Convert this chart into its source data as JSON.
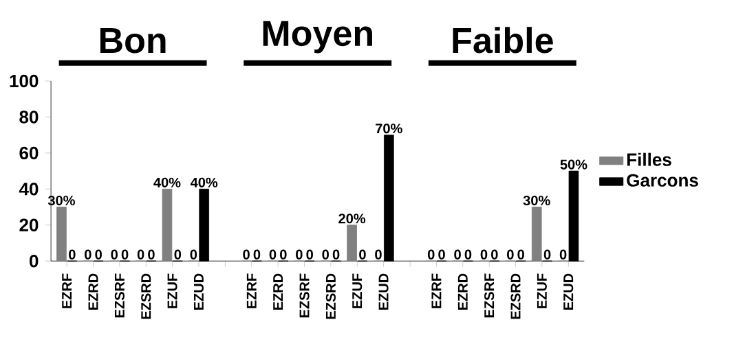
{
  "chart_data": {
    "type": "bar",
    "annotations": [
      "Bon",
      "Moyen",
      "Faible"
    ],
    "categories": [
      "EZRF",
      "EZRD",
      "EZSRF",
      "EZSRD",
      "EZUF",
      "EZUD",
      null,
      "EZRF",
      "EZRD",
      "EZSRF",
      "EZSRD",
      "EZUF",
      "EZUD",
      null,
      "EZRF",
      "EZRD",
      "EZSRF",
      "EZSRD",
      "EZUF",
      "EZUD"
    ],
    "series": [
      {
        "name": "Filles",
        "color": "#808080",
        "values": [
          30,
          0,
          0,
          0,
          40,
          0,
          null,
          0,
          0,
          0,
          0,
          20,
          0,
          null,
          0,
          0,
          0,
          0,
          30,
          0
        ],
        "value_labels": [
          "30%",
          "0",
          "0",
          "0",
          "40%",
          "0",
          null,
          "0",
          "0",
          "0",
          "0",
          "20%",
          "0",
          null,
          "0",
          "0",
          "0",
          "0",
          "30%",
          "0"
        ]
      },
      {
        "name": "Garcons",
        "color": "#000000",
        "values": [
          0,
          0,
          0,
          0,
          0,
          40,
          null,
          0,
          0,
          0,
          0,
          0,
          70,
          null,
          0,
          0,
          0,
          0,
          0,
          50
        ],
        "value_labels": [
          "0",
          "0",
          "0",
          "0",
          "0",
          "40%",
          null,
          "0",
          "0",
          "0",
          "0",
          "0",
          "70%",
          null,
          "0",
          "0",
          "0",
          "0",
          "0",
          "50%"
        ]
      }
    ],
    "ylim": [
      0,
      100
    ],
    "yticks": [
      0,
      20,
      40,
      60,
      80,
      100
    ],
    "grid": false,
    "legend": "right"
  }
}
